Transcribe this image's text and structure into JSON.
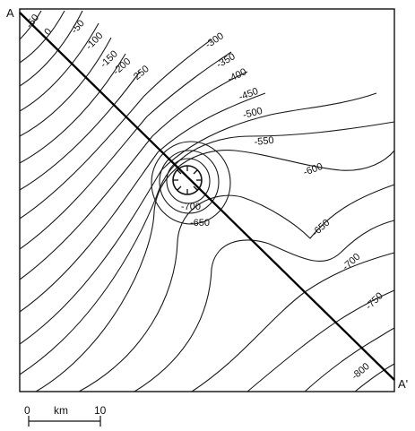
{
  "endpoints": {
    "start": "A",
    "end": "A'"
  },
  "contour_labels": [
    "-50",
    "0",
    "-50",
    "-100",
    "-150",
    "-200",
    "-250",
    "-300",
    "-350",
    "-400",
    "-450",
    "-500",
    "-550",
    "-600",
    "-650",
    "-700",
    "-650",
    "-700",
    "-750",
    "-800"
  ],
  "scale_bar": {
    "start": "0",
    "unit": "km",
    "end": "10"
  }
}
